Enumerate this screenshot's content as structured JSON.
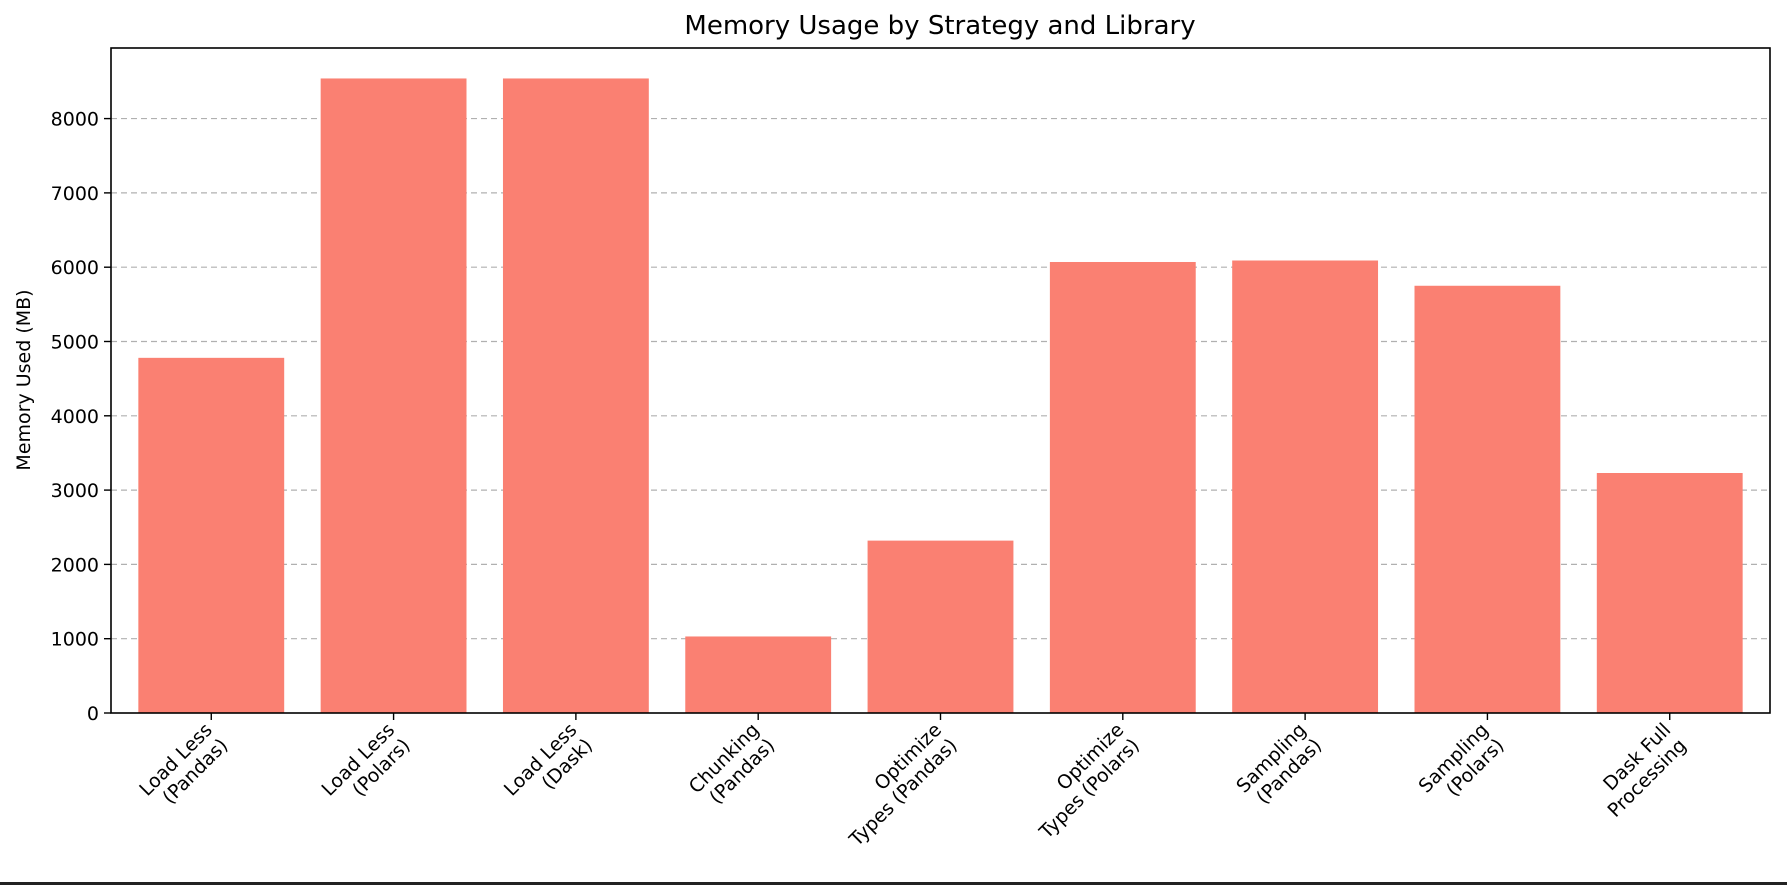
{
  "chart_data": {
    "type": "bar",
    "title": "Memory Usage by Strategy and Library",
    "xlabel": "",
    "ylabel": "Memory Used (MB)",
    "ylim": [
      0,
      8950
    ],
    "yticks": [
      0,
      1000,
      2000,
      3000,
      4000,
      5000,
      6000,
      7000,
      8000
    ],
    "grid": "y-dashed",
    "bar_color": "#fa8072",
    "categories": [
      [
        "Load Less",
        "(Pandas)"
      ],
      [
        "Load Less",
        "(Polars)"
      ],
      [
        "Load Less",
        "(Dask)"
      ],
      [
        "Chunking",
        "(Pandas)"
      ],
      [
        "Optimize",
        "Types (Pandas)"
      ],
      [
        "Optimize",
        "Types (Polars)"
      ],
      [
        "Sampling",
        "(Pandas)"
      ],
      [
        "Sampling",
        "(Polars)"
      ],
      [
        "Dask Full",
        "Processing"
      ]
    ],
    "values": [
      4780,
      8540,
      8540,
      1030,
      2320,
      6070,
      6090,
      5750,
      3230
    ]
  }
}
